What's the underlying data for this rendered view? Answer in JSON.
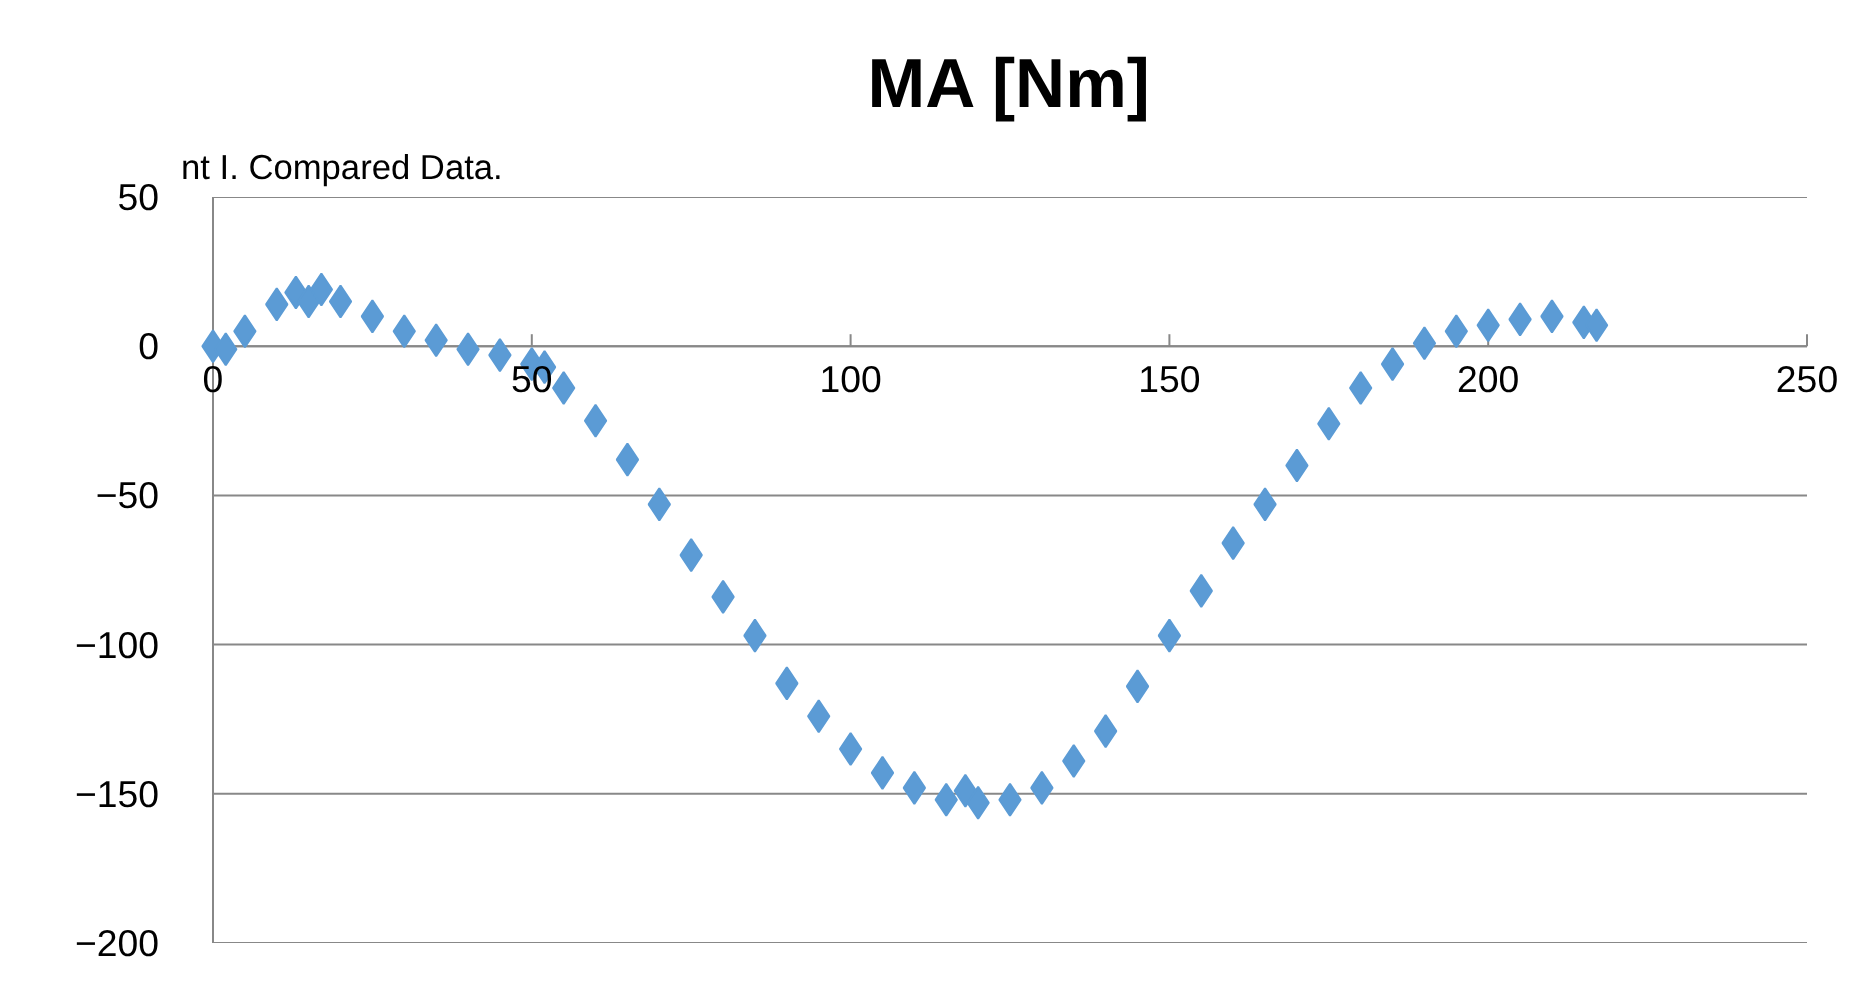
{
  "chart_data": {
    "type": "scatter",
    "title": "MA [Nm]",
    "annotations": [
      "nt I. Compared Data."
    ],
    "x": [
      0,
      2,
      5,
      10,
      13,
      15,
      17,
      20,
      25,
      30,
      35,
      40,
      45,
      50,
      52,
      55,
      60,
      65,
      70,
      75,
      80,
      85,
      90,
      95,
      100,
      105,
      110,
      115,
      118,
      120,
      125,
      130,
      135,
      140,
      145,
      150,
      155,
      160,
      165,
      170,
      175,
      180,
      185,
      190,
      195,
      200,
      205,
      210,
      215,
      217
    ],
    "series": [
      {
        "color": "#5b9bd5",
        "values": [
          0,
          -1,
          5,
          14,
          18,
          15,
          19,
          15,
          10,
          5,
          2,
          -1,
          -3,
          -6,
          -7,
          -14,
          -25,
          -38,
          -53,
          -70,
          -84,
          -97,
          -113,
          -124,
          -135,
          -143,
          -148,
          -152,
          -149,
          -153,
          -152,
          -148,
          -139,
          -129,
          -114,
          -97,
          -82,
          -66,
          -53,
          -40,
          -26,
          -14,
          -6,
          1,
          5,
          7,
          9,
          10,
          8,
          7
        ]
      }
    ],
    "xlim": [
      0,
      250
    ],
    "xticks": [
      0,
      50,
      100,
      150,
      200,
      250
    ],
    "ylim": [
      -200,
      50
    ],
    "yticks": [
      -200,
      -150,
      -100,
      -50,
      0,
      50
    ],
    "grid": "y",
    "marker": "diamond"
  }
}
